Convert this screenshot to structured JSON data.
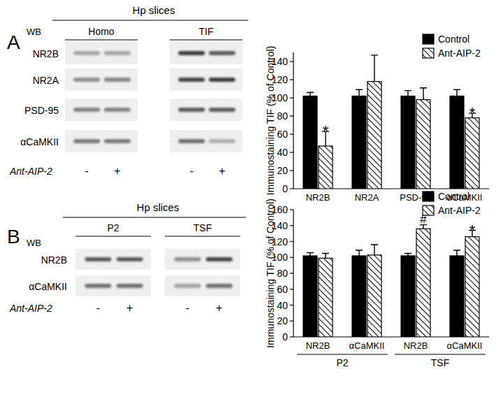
{
  "figure": {
    "panels": [
      {
        "label": "A",
        "title": "Hp slices",
        "wb": "WB",
        "groups": [
          "Homo",
          "TIF"
        ],
        "rows": [
          "NR2B",
          "NR2A",
          "PSD-95",
          "αCaMKII"
        ],
        "treatment": "Ant-AIP-2",
        "lanes": [
          "-",
          "+"
        ]
      },
      {
        "label": "B",
        "title": "Hp slices",
        "wb": "WB",
        "groups": [
          "P2",
          "TSF"
        ],
        "rows": [
          "NR2B",
          "αCaMKII"
        ],
        "treatment": "Ant-AIP-2",
        "lanes": [
          "-",
          "+"
        ]
      }
    ]
  },
  "chart_data": [
    {
      "type": "bar",
      "y_label": "Immunostaining TIF (% of Control)",
      "categories": [
        "NR2B",
        "NR2A",
        "PSD-95",
        "αCaMKII"
      ],
      "series": [
        {
          "name": "Control",
          "color": "#000000",
          "values": [
            102,
            102,
            102,
            102
          ],
          "errors": [
            4,
            7,
            6,
            7
          ]
        },
        {
          "name": "Ant-AIP-2",
          "color": "#000000",
          "line_style": "hatched",
          "values": [
            47,
            118,
            98,
            78
          ],
          "errors": [
            16,
            29,
            13,
            5
          ],
          "significance": [
            "*",
            null,
            null,
            "*"
          ]
        }
      ],
      "ylim": [
        0,
        150
      ],
      "yticks": [
        0,
        20,
        40,
        60,
        80,
        100,
        120,
        140
      ],
      "legend": "upper right"
    },
    {
      "type": "bar",
      "y_label": "Immunostaining TIF (% of Control)",
      "categories": [
        "NR2B",
        "αCaMKII",
        "NR2B",
        "αCaMKII"
      ],
      "groups": [
        {
          "label": "P2",
          "categories": 2
        },
        {
          "label": "TSF",
          "categories": 2
        }
      ],
      "series": [
        {
          "name": "Control",
          "color": "#000000",
          "values": [
            102,
            102,
            102,
            102
          ],
          "errors": [
            4,
            7,
            3,
            7
          ]
        },
        {
          "name": "Ant-AIP-2",
          "color": "#000000",
          "line_style": "hatched",
          "values": [
            99,
            103,
            136,
            126
          ],
          "errors": [
            6,
            13,
            5,
            8
          ],
          "significance": [
            null,
            null,
            "#",
            "*"
          ]
        }
      ],
      "ylim": [
        0,
        160
      ],
      "yticks": [
        0,
        20,
        40,
        60,
        80,
        100,
        120,
        140,
        160
      ],
      "legend": "upper right"
    }
  ]
}
